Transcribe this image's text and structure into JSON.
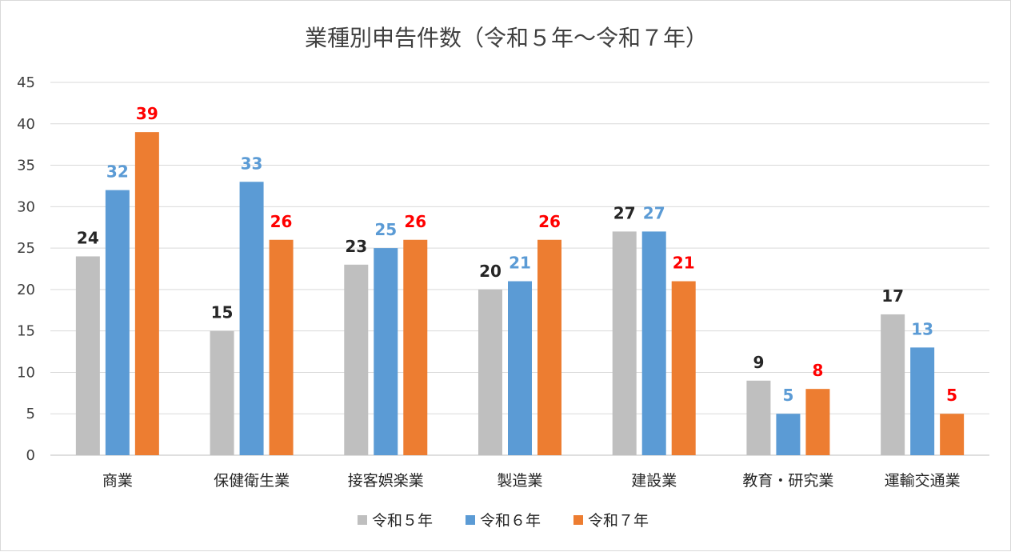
{
  "chart_data": {
    "type": "bar",
    "title": "業種別申告件数（令和５年～令和７年）",
    "categories": [
      "商業",
      "保健衛生業",
      "接客娯楽業",
      "製造業",
      "建設業",
      "教育・研究業",
      "運輸交通業"
    ],
    "series": [
      {
        "name": "令和５年",
        "values": [
          24,
          15,
          23,
          20,
          27,
          9,
          17
        ],
        "color": "#bfbfbf",
        "label_color": "#262626"
      },
      {
        "name": "令和６年",
        "values": [
          32,
          33,
          25,
          21,
          27,
          5,
          13
        ],
        "color": "#5b9bd5",
        "label_color": "#5b9bd5"
      },
      {
        "name": "令和７年",
        "values": [
          39,
          26,
          26,
          26,
          21,
          8,
          5
        ],
        "color": "#ed7d31",
        "label_color": "#ff0000"
      }
    ],
    "ylim": [
      0,
      45
    ],
    "yticks": [
      0,
      5,
      10,
      15,
      20,
      25,
      30,
      35,
      40,
      45
    ],
    "grid": true,
    "legend_position": "bottom",
    "data_labels": true
  }
}
